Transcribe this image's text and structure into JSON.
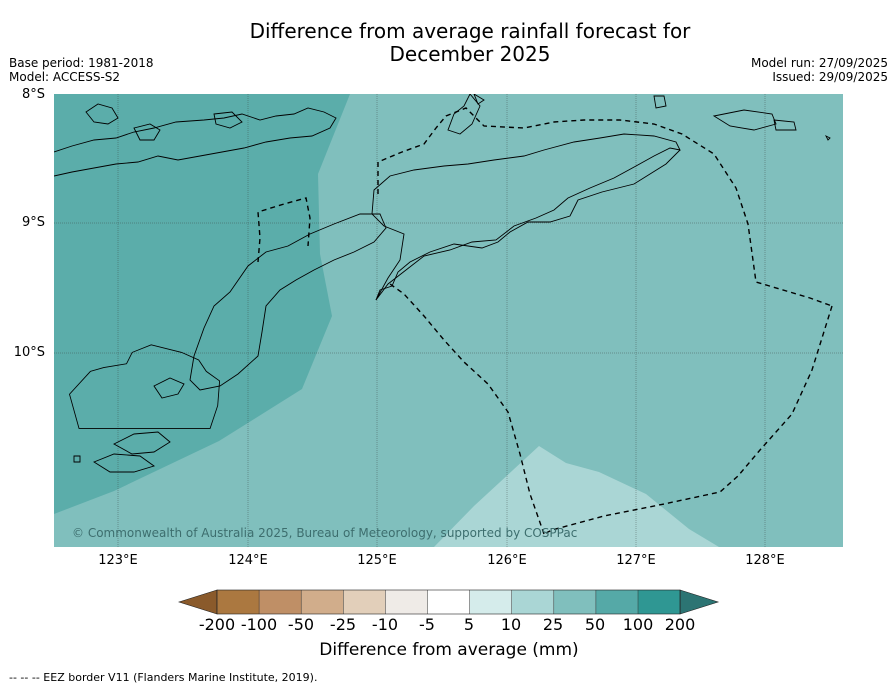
{
  "title_line1": "Difference from average rainfall forecast for",
  "title_line2": "December 2025",
  "base_period": "Base period: 1981-2018",
  "model": "Model: ACCESS-S2",
  "model_run": "Model run: 27/09/2025",
  "issued": "Issued: 29/09/2025",
  "lat_labels": [
    "8°S",
    "9°S",
    "10°S"
  ],
  "lon_labels": [
    "123°E",
    "124°E",
    "125°E",
    "126°E",
    "127°E",
    "128°E"
  ],
  "copyright": "© Commonwealth of Australia 2025, Bureau of Meteorology, supported by COSPPac",
  "colorbar": {
    "ticks": [
      "-200",
      "-100",
      "-50",
      "-25",
      "-10",
      "-5",
      "5",
      "10",
      "25",
      "50",
      "100",
      "200"
    ],
    "colors": {
      "below_min": "#8a5a2b",
      "bins": [
        "#ab7840",
        "#bf8f66",
        "#d1ad8b",
        "#e2cfba",
        "#efebe7",
        "#ffffff",
        "#d5eceb",
        "#aad6d5",
        "#80bfbd",
        "#55a9a7",
        "#2f9793"
      ],
      "above_max": "#2c7473"
    },
    "label": "Difference from average (mm)"
  },
  "footnote": "--  --  -- EEZ border V11 (Flanders Marine Institute, 2019)."
}
